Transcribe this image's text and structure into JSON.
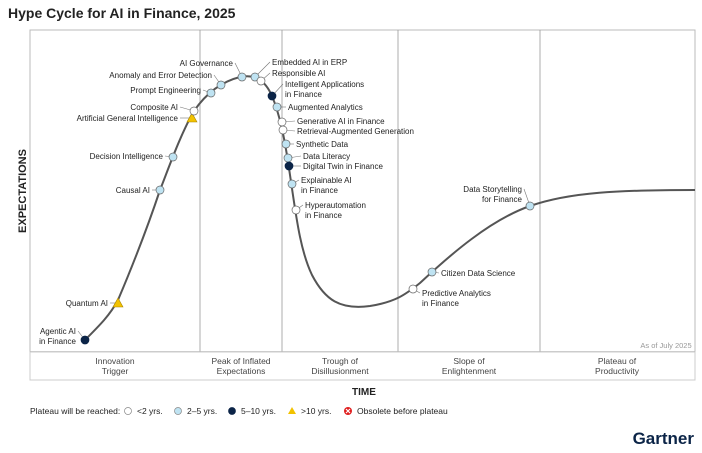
{
  "chart_data": {
    "type": "scatter",
    "title": "Hype Cycle for AI in Finance, 2025",
    "xlabel": "TIME",
    "ylabel": "EXPECTATIONS",
    "as_of": "As of July 2025",
    "phases": [
      "Innovation Trigger",
      "Peak of Inflated Expectations",
      "Trough of Disillusionment",
      "Slope of Enlightenment",
      "Plateau of Productivity"
    ],
    "legend": {
      "title": "Plateau will be reached:",
      "items": [
        {
          "key": "lt2",
          "label": "<2 yrs."
        },
        {
          "key": "2to5",
          "label": "2–5 yrs."
        },
        {
          "key": "5to10",
          "label": "5–10 yrs."
        },
        {
          "key": "gt10",
          "label": ">10 yrs."
        },
        {
          "key": "obsolete",
          "label": "Obsolete before plateau"
        }
      ]
    },
    "colors": {
      "lt2": "#ffffff",
      "2to5": "#bfe3f2",
      "5to10": "#0b2447",
      "gt10": "#f2c200",
      "obsolete": "#e02020",
      "curve": "#555555"
    },
    "points": [
      {
        "name": "Agentic AI in Finance",
        "phase": "Innovation Trigger",
        "plateau": "5to10"
      },
      {
        "name": "Quantum AI",
        "phase": "Innovation Trigger",
        "plateau": "gt10"
      },
      {
        "name": "Causal AI",
        "phase": "Innovation Trigger",
        "plateau": "2to5"
      },
      {
        "name": "Decision Intelligence",
        "phase": "Innovation Trigger",
        "plateau": "2to5"
      },
      {
        "name": "Artificial General Intelligence",
        "phase": "Innovation Trigger",
        "plateau": "gt10"
      },
      {
        "name": "Composite AI",
        "phase": "Innovation Trigger",
        "plateau": "lt2"
      },
      {
        "name": "Prompt Engineering",
        "phase": "Peak of Inflated Expectations",
        "plateau": "2to5"
      },
      {
        "name": "Anomaly and Error Detection",
        "phase": "Peak of Inflated Expectations",
        "plateau": "2to5"
      },
      {
        "name": "AI Governance",
        "phase": "Peak of Inflated Expectations",
        "plateau": "2to5"
      },
      {
        "name": "Embedded AI in ERP",
        "phase": "Peak of Inflated Expectations",
        "plateau": "2to5"
      },
      {
        "name": "Responsible AI",
        "phase": "Peak of Inflated Expectations",
        "plateau": "lt2"
      },
      {
        "name": "Intelligent Applications in Finance",
        "phase": "Peak of Inflated Expectations",
        "plateau": "5to10"
      },
      {
        "name": "Augmented Analytics",
        "phase": "Peak of Inflated Expectations",
        "plateau": "2to5"
      },
      {
        "name": "Generative AI in Finance",
        "phase": "Trough of Disillusionment",
        "plateau": "lt2"
      },
      {
        "name": "Retrieval-Augmented Generation",
        "phase": "Trough of Disillusionment",
        "plateau": "lt2"
      },
      {
        "name": "Synthetic Data",
        "phase": "Trough of Disillusionment",
        "plateau": "2to5"
      },
      {
        "name": "Data Literacy",
        "phase": "Trough of Disillusionment",
        "plateau": "2to5"
      },
      {
        "name": "Digital Twin in Finance",
        "phase": "Trough of Disillusionment",
        "plateau": "5to10"
      },
      {
        "name": "Explainable AI in Finance",
        "phase": "Trough of Disillusionment",
        "plateau": "2to5"
      },
      {
        "name": "Hyperautomation in Finance",
        "phase": "Trough of Disillusionment",
        "plateau": "lt2"
      },
      {
        "name": "Predictive Analytics in Finance",
        "phase": "Slope of Enlightenment",
        "plateau": "lt2"
      },
      {
        "name": "Citizen Data Science",
        "phase": "Slope of Enlightenment",
        "plateau": "2to5"
      },
      {
        "name": "Data Storytelling for Finance",
        "phase": "Slope of Enlightenment",
        "plateau": "2to5"
      }
    ]
  },
  "brand": "Gartner"
}
